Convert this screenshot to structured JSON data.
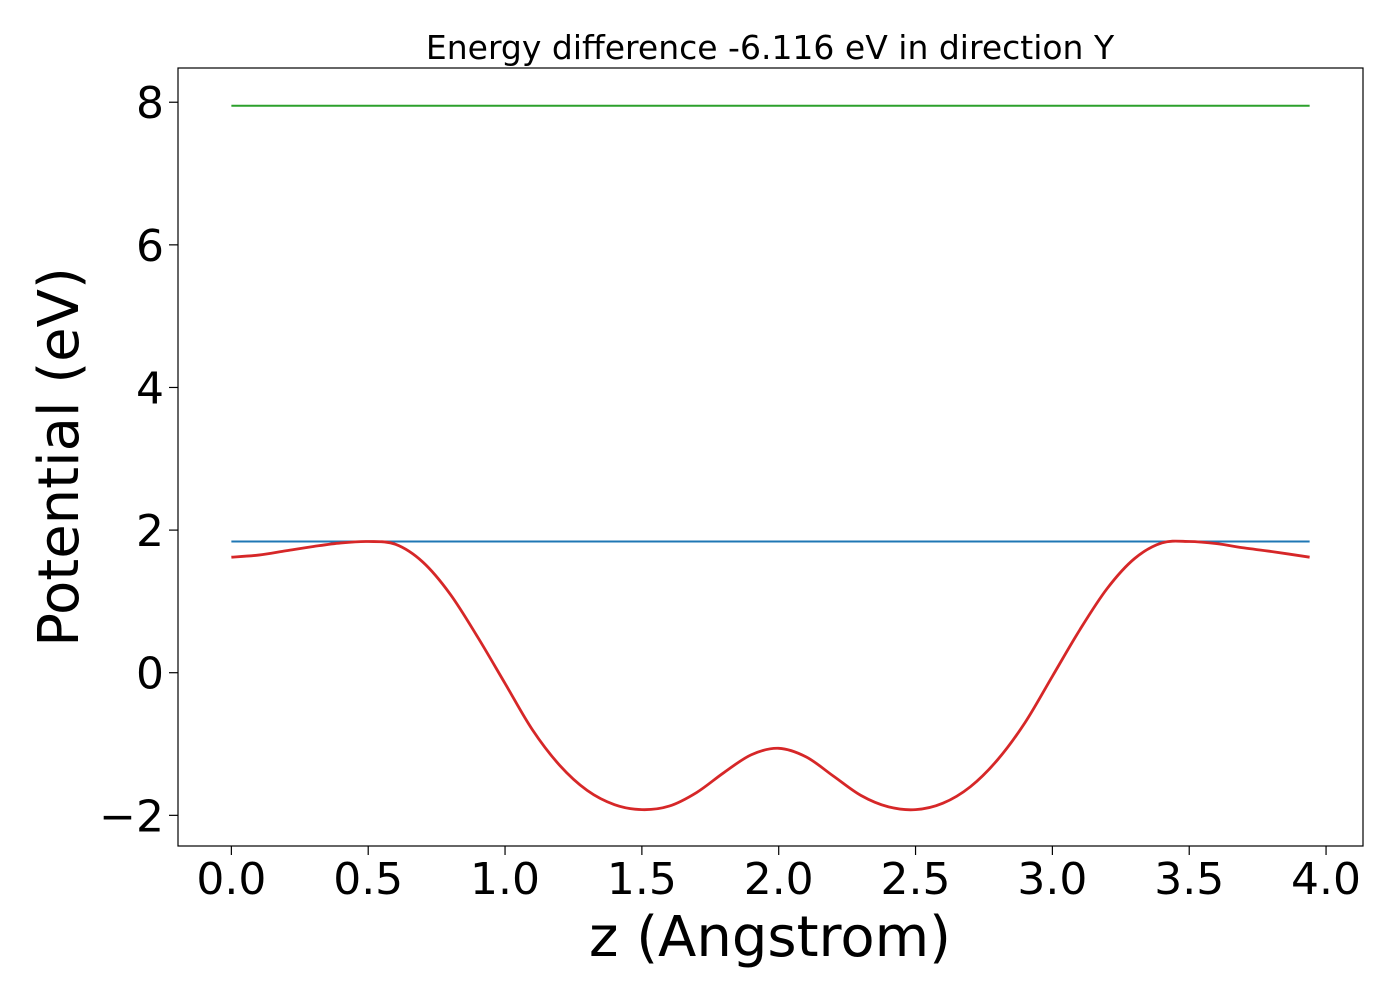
{
  "chart_data": {
    "type": "line",
    "title": "Energy difference -6.116 eV in direction Y",
    "xlabel": "z (Angstrom)",
    "ylabel": "Potential (eV)",
    "xlim": [
      -0.195,
      4.135
    ],
    "ylim": [
      -2.43,
      8.48
    ],
    "x_ticks": [
      0.0,
      0.5,
      1.0,
      1.5,
      2.0,
      2.5,
      3.0,
      3.5,
      4.0
    ],
    "x_tick_labels": [
      "0.0",
      "0.5",
      "1.0",
      "1.5",
      "2.0",
      "2.5",
      "3.0",
      "3.5",
      "4.0"
    ],
    "y_ticks": [
      -2,
      0,
      2,
      4,
      6,
      8
    ],
    "y_tick_labels": [
      "−2",
      "0",
      "2",
      "4",
      "6",
      "8"
    ],
    "grid": false,
    "series": [
      {
        "color": "#2ca02c",
        "x": [
          0.0,
          3.94
        ],
        "y": [
          7.95,
          7.95
        ]
      },
      {
        "color": "#1f77b4",
        "x": [
          0.0,
          3.94
        ],
        "y": [
          1.84,
          1.84
        ]
      },
      {
        "color": "#d62728",
        "x": [
          0.0,
          0.1,
          0.2,
          0.3,
          0.4,
          0.5,
          0.6,
          0.7,
          0.8,
          0.9,
          1.0,
          1.1,
          1.2,
          1.3,
          1.4,
          1.5,
          1.6,
          1.7,
          1.8,
          1.9,
          2.0,
          2.1,
          2.2,
          2.3,
          2.4,
          2.5,
          2.6,
          2.7,
          2.8,
          2.9,
          3.0,
          3.1,
          3.2,
          3.3,
          3.4,
          3.5,
          3.6,
          3.7,
          3.8,
          3.94
        ],
        "y": [
          1.62,
          1.65,
          1.71,
          1.77,
          1.82,
          1.84,
          1.8,
          1.55,
          1.1,
          0.5,
          -0.15,
          -0.8,
          -1.3,
          -1.65,
          -1.85,
          -1.92,
          -1.87,
          -1.68,
          -1.4,
          -1.15,
          -1.06,
          -1.18,
          -1.45,
          -1.72,
          -1.88,
          -1.92,
          -1.83,
          -1.6,
          -1.22,
          -0.7,
          -0.05,
          0.6,
          1.18,
          1.6,
          1.82,
          1.84,
          1.81,
          1.75,
          1.7,
          1.62
        ]
      }
    ]
  }
}
